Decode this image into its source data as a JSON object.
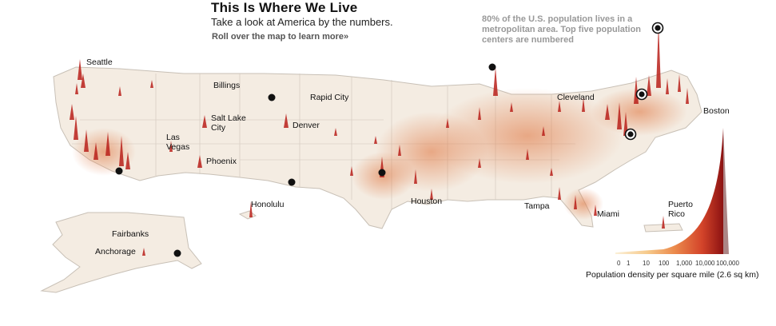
{
  "header": {
    "title": "This Is Where We Live",
    "subtitle": "Take a look at America by the numbers.",
    "rollover": "Roll over the map to learn more»"
  },
  "note": "80% of the U.S. population lives in a metropolitan area. Top five population centers are numbered",
  "cities": [
    "Seattle",
    "Billings",
    "Rapid City",
    "Salt Lake City",
    "Denver",
    "Las Vegas",
    "Phoenix",
    "Honolulu",
    "Houston",
    "Cleveland",
    "Boston",
    "Tampa",
    "Miami",
    "Puerto Rico",
    "Fairbanks",
    "Anchorage"
  ],
  "legend": {
    "ticks": [
      "0",
      "1",
      "10",
      "100",
      "1,000",
      "10,000",
      "100,000"
    ],
    "caption": "Population density per square mile (2.6 sq km)",
    "colors": [
      "#fbf0d8",
      "#f6c98a",
      "#eb8a4c",
      "#d4452a",
      "#9c1717"
    ]
  },
  "colors": {
    "land": "#f4ece2",
    "spike": "#b8201a",
    "outline": "#c8c0b6"
  }
}
